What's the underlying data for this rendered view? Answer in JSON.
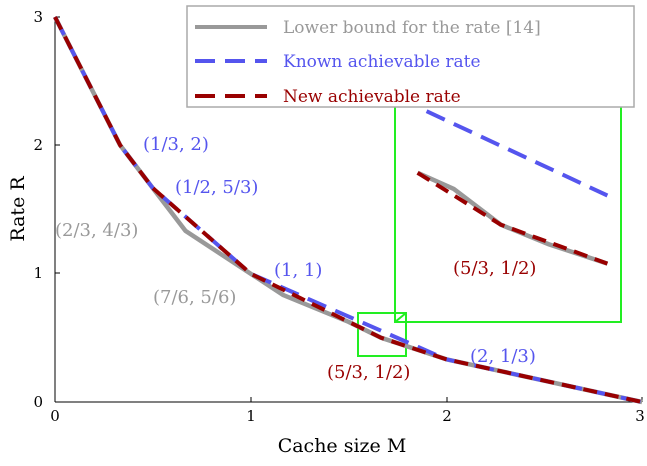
{
  "chart_data": {
    "type": "line",
    "xlabel": "Cache size M",
    "ylabel": "Rate R",
    "xlim": [
      0,
      3
    ],
    "ylim": [
      0,
      3
    ],
    "xticks": [
      "0",
      "1",
      "2",
      "3"
    ],
    "yticks": [
      "0",
      "1",
      "2",
      "3"
    ],
    "legend_position": "top-right",
    "grid": false,
    "series": [
      {
        "name": "Lower bound for the rate [14]",
        "color": "#999999",
        "style": "solid",
        "x": [
          0,
          0.333,
          0.5,
          0.667,
          1,
          1.167,
          1.5,
          1.667,
          2,
          3
        ],
        "y": [
          3,
          2,
          1.667,
          1.333,
          1,
          0.833,
          0.625,
          0.5,
          0.333,
          0
        ]
      },
      {
        "name": "Known achievable rate",
        "color": "#5555ee",
        "style": "dashed",
        "x": [
          0,
          0.333,
          0.5,
          1,
          2,
          3
        ],
        "y": [
          3,
          2,
          1.667,
          1,
          0.333,
          0
        ]
      },
      {
        "name": "New achievable rate",
        "color": "#990000",
        "style": "dashed",
        "x": [
          0,
          0.333,
          0.5,
          1,
          1.667,
          2,
          3
        ],
        "y": [
          3,
          2,
          1.667,
          1,
          0.5,
          0.333,
          0
        ]
      }
    ],
    "annotations": [
      {
        "text": "(1/3, 2)",
        "color": "#5555ee"
      },
      {
        "text": "(1/2, 5/3)",
        "color": "#5555ee"
      },
      {
        "text": "(2/3, 4/3)",
        "color": "#999999"
      },
      {
        "text": "(1, 1)",
        "color": "#5555ee"
      },
      {
        "text": "(7/6, 5/6)",
        "color": "#999999"
      },
      {
        "text": "(5/3, 1/2)",
        "color": "#990000"
      },
      {
        "text": "(2, 1/3)",
        "color": "#5555ee"
      }
    ],
    "inset": {
      "annotation": {
        "text": "(5/3, 1/2)",
        "color": "#990000"
      },
      "highlight_color": "#22ee22",
      "zoom_xlim": [
        1.55,
        1.8
      ],
      "zoom_ylim": [
        0.35,
        0.7
      ]
    }
  }
}
